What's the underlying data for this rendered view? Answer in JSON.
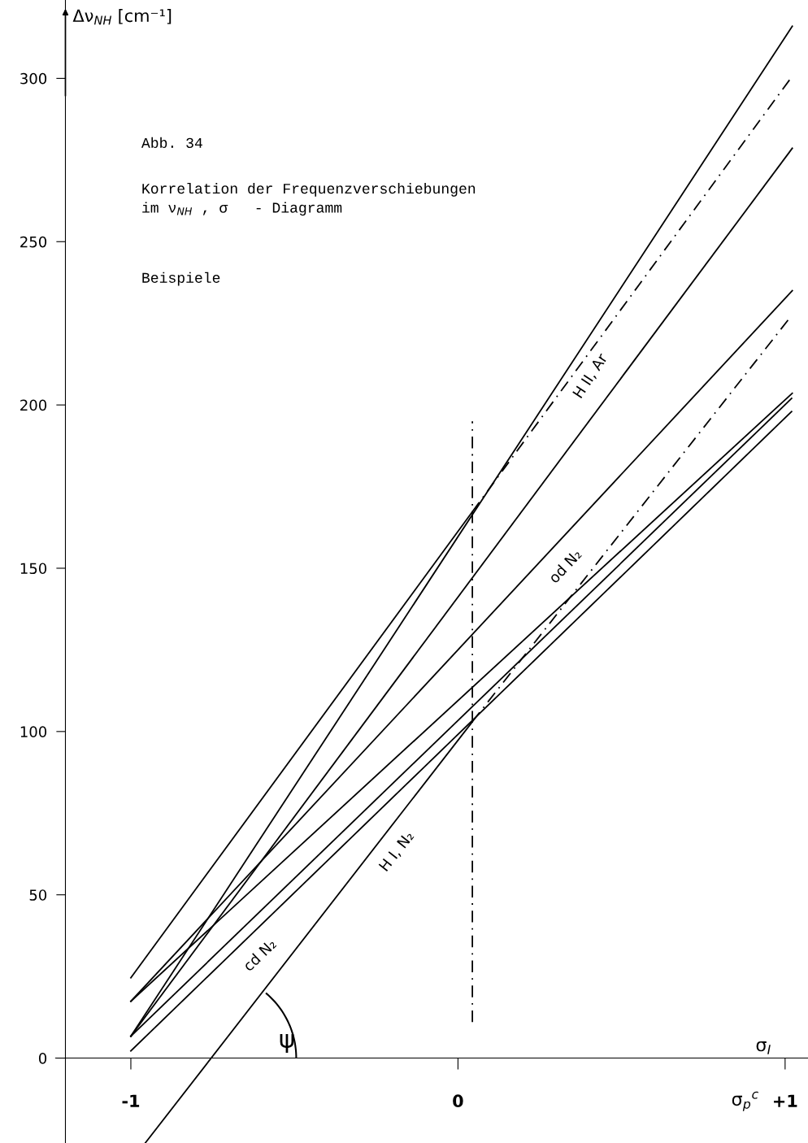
{
  "chart_data": {
    "type": "line",
    "title": "Abb. 34",
    "subtitle": "Korrelation der Frequenzverschiebungen\nim ν$_{NH}$ , σ   - Diagramm",
    "xlabel": "σ$_{I}$",
    "ylabel": "Δν$_{NH}$ [cm⁻¹]",
    "annotations": [
      "Beispiele",
      "σ$_{p}$$^{c}$",
      "ψ",
      {
        "text": "H II, Ar",
        "x": 0.357,
        "y": 213
      },
      {
        "text": "od N₂",
        "x": 0.283,
        "y": 155
      },
      {
        "text": "H I, N₂",
        "x": -0.234,
        "y": 67.6
      },
      {
        "text": "cd N₂",
        "x": -0.65,
        "y": 36
      }
    ],
    "series": [
      {
        "color": "#000000",
        "x": [
          -1,
          1.022
        ],
        "values": [
          6.7,
          316
        ]
      },
      {
        "color": "#000000",
        "x": [
          -1,
          0.044
        ],
        "values": [
          24.6,
          167.3
        ]
      },
      {
        "color": "#000000",
        "x": [
          0.044,
          1.017
        ],
        "values": [
          167.3,
          300
        ],
        "line_style": "dashed"
      },
      {
        "color": "#000000",
        "x": [
          -1,
          1.022
        ],
        "values": [
          6.7,
          278.6
        ]
      },
      {
        "color": "#000000",
        "x": [
          -1,
          1.022
        ],
        "values": [
          17.4,
          235
        ]
      },
      {
        "color": "#000000",
        "x": [
          -0.956,
          0.044
        ],
        "values": [
          -26,
          103
        ]
      },
      {
        "color": "#000000",
        "x": [
          0.044,
          1.017
        ],
        "values": [
          103,
          227
        ],
        "line_style": "dashed"
      },
      {
        "color": "#000000",
        "x": [
          -1,
          1.022
        ],
        "values": [
          17.4,
          203.6
        ]
      },
      {
        "color": "#000000",
        "x": [
          -1,
          1.02
        ],
        "values": [
          6.7,
          202
        ]
      },
      {
        "color": "#000000",
        "x": [
          -1,
          1.02
        ],
        "values": [
          2.2,
          198
        ]
      },
      {
        "color": "#000000",
        "x": [
          0.044,
          0.044
        ],
        "values": [
          11,
          195
        ],
        "line_style": "dashed"
      }
    ],
    "xlim": [
      -1.4,
      1.07
    ],
    "ylim": [
      -26,
      324
    ],
    "xticks": [
      -1,
      0,
      {
        "value": 1,
        "label": "+1"
      }
    ],
    "yticks": [
      0,
      50,
      100,
      150,
      200,
      250,
      300
    ],
    "marker": "none",
    "line_style": "solid"
  }
}
